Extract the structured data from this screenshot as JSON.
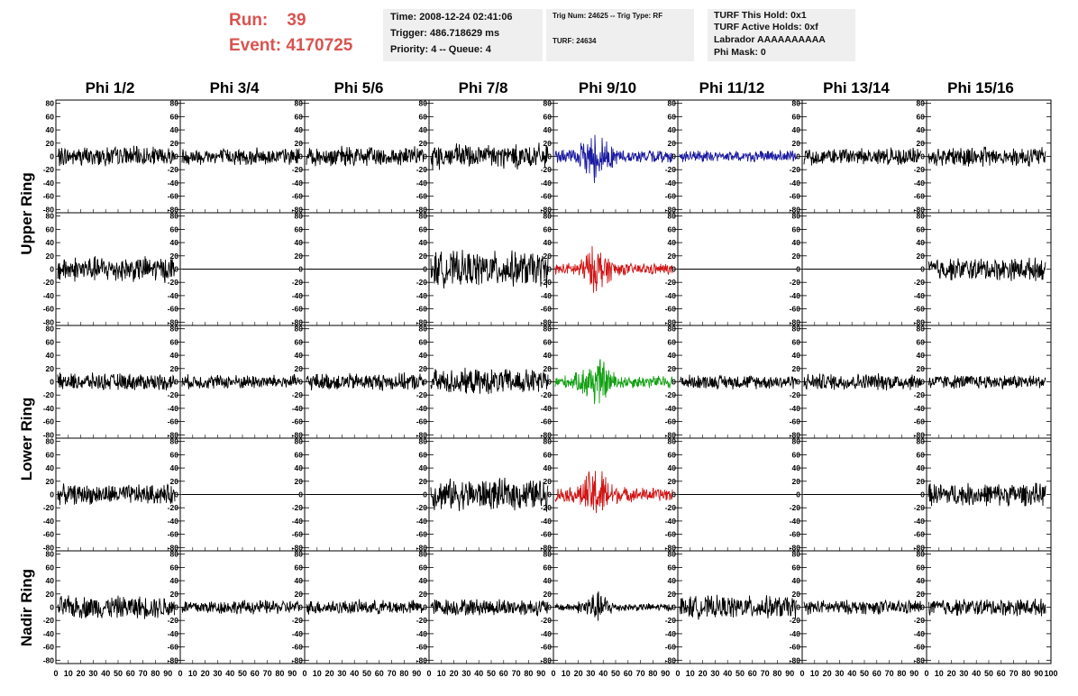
{
  "header": {
    "run_label": "Run:",
    "run_value": "39",
    "event_label": "Event:",
    "event_value": "4170725",
    "box1": [
      "Time: 2008-12-24 02:41:06",
      "Trigger: 486.718629 ms",
      "Priority: 4 -- Queue: 4"
    ],
    "box2": [
      "Trig Num: 24625 -- Trig Type: RF",
      "TURF: 24634"
    ],
    "box3": [
      "TURF This Hold: 0x1",
      "TURF Active Holds: 0xf",
      "Labrador AAAAAAAAAA",
      "Phi Mask: 0"
    ]
  },
  "ring_labels": [
    "Upper Ring",
    "Lower Ring",
    "Nadir Ring"
  ],
  "chart_data": {
    "type": "line",
    "columns": [
      "Phi 1/2",
      "Phi 3/4",
      "Phi 5/6",
      "Phi 7/8",
      "Phi 9/10",
      "Phi 11/12",
      "Phi 13/14",
      "Phi 15/16"
    ],
    "ylim": [
      -85,
      85
    ],
    "y_ticks": [
      -80,
      -60,
      -40,
      -20,
      0,
      20,
      40,
      60,
      80
    ],
    "xlim": [
      0,
      100
    ],
    "x_tick_labels": [
      "0",
      "10",
      "20",
      "30",
      "40",
      "50",
      "60",
      "70",
      "80",
      "90",
      "100"
    ],
    "grid": false,
    "row_colors": [
      "#000000",
      "#000000",
      "#000000",
      "#000000",
      "#000000"
    ],
    "highlight": [
      {
        "row": 0,
        "col": 4,
        "color": "#1a1aa0"
      },
      {
        "row": 0,
        "col": 5,
        "color": "#1a1aa0"
      },
      {
        "row": 1,
        "col": 4,
        "color": "#d01414"
      },
      {
        "row": 2,
        "col": 4,
        "color": "#14a014"
      },
      {
        "row": 3,
        "col": 4,
        "color": "#d01414"
      }
    ],
    "amplitude": [
      [
        14,
        12,
        14,
        18,
        20,
        8,
        12,
        14
      ],
      [
        18,
        0,
        0,
        25,
        18,
        0,
        0,
        16
      ],
      [
        12,
        10,
        12,
        18,
        20,
        10,
        12,
        10
      ],
      [
        14,
        0,
        0,
        22,
        22,
        0,
        0,
        16
      ],
      [
        16,
        10,
        10,
        12,
        12,
        16,
        10,
        12
      ]
    ],
    "burst": [
      [
        0,
        0,
        0,
        0,
        1,
        0,
        0,
        0
      ],
      [
        0,
        0,
        0,
        0,
        1,
        0,
        0,
        0
      ],
      [
        0,
        0,
        0,
        0,
        1,
        0,
        0,
        0
      ],
      [
        0,
        0,
        0,
        0,
        1,
        0,
        0,
        0
      ],
      [
        0,
        0,
        0,
        0,
        1,
        0,
        0,
        0
      ]
    ]
  }
}
